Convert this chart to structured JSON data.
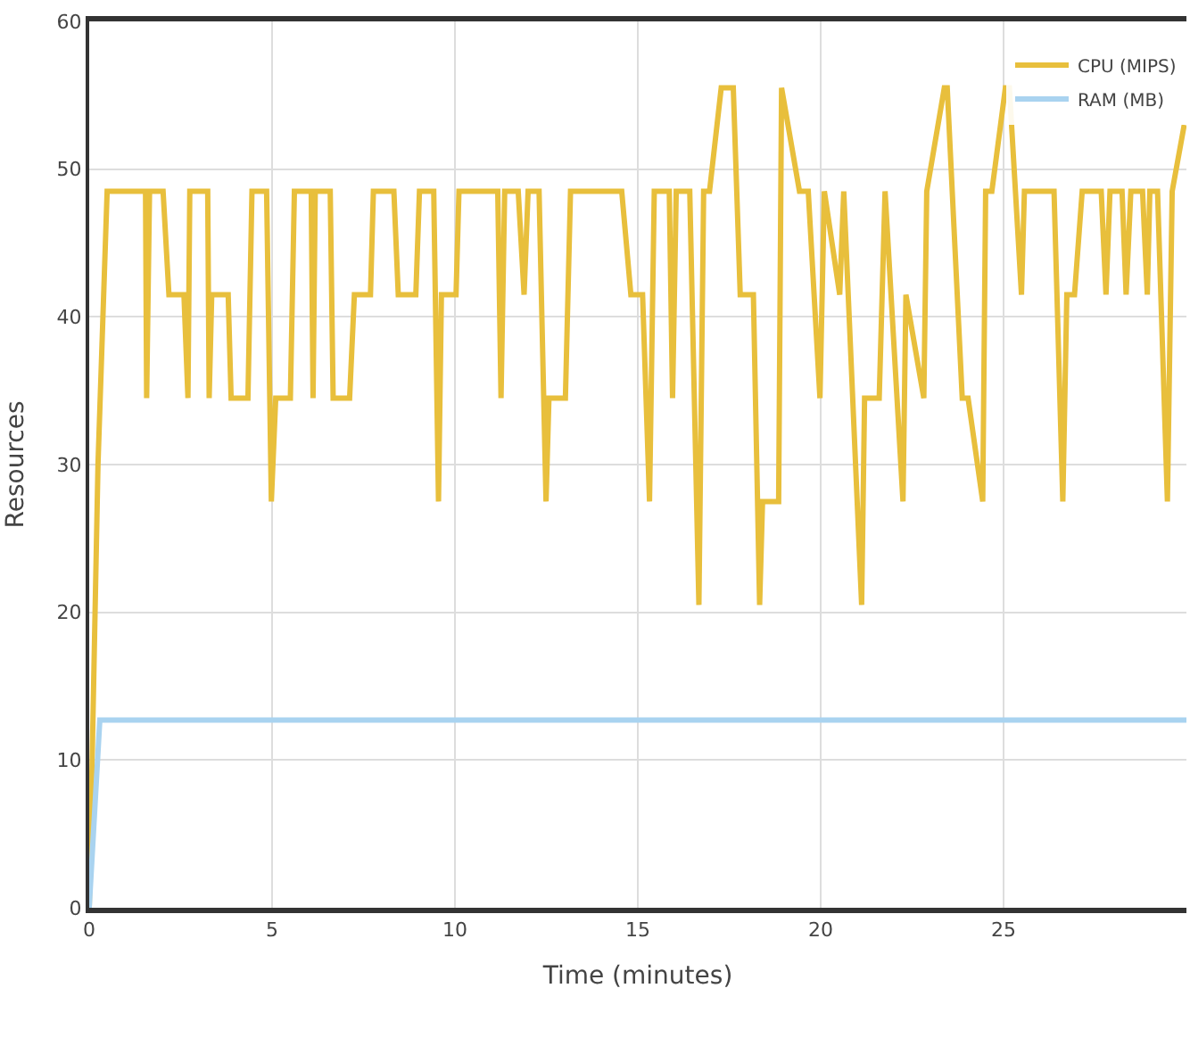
{
  "chart_data": {
    "type": "line",
    "xlabel": "Time (minutes)",
    "ylabel": "Resources",
    "xlim": [
      0,
      30
    ],
    "xticks": [
      0,
      5,
      10,
      15,
      20,
      25
    ],
    "ylim": [
      0,
      60
    ],
    "yticks": [
      0,
      10,
      20,
      30,
      40,
      50,
      60
    ],
    "grid": true,
    "legend": "top right",
    "marker": "none",
    "line_style": "solid",
    "series": [
      {
        "name": "CPU (MIPS)",
        "color": "#e8bf3c",
        "x": [
          0,
          0.24,
          0.49,
          1.54,
          1.57,
          1.65,
          2.02,
          2.18,
          2.59,
          2.7,
          2.75,
          3.24,
          3.28,
          3.35,
          3.8,
          3.88,
          4.34,
          4.45,
          4.85,
          4.98,
          5.1,
          5.5,
          5.61,
          6.07,
          6.12,
          6.18,
          6.59,
          6.67,
          7.12,
          7.25,
          7.69,
          7.77,
          8.33,
          8.45,
          8.93,
          9.03,
          9.42,
          9.55,
          9.63,
          10.03,
          10.11,
          11.17,
          11.26,
          11.36,
          11.73,
          11.89,
          12.0,
          12.3,
          12.49,
          12.57,
          13.02,
          13.16,
          14.56,
          14.81,
          15.13,
          15.32,
          15.45,
          15.86,
          15.95,
          16.05,
          16.42,
          16.67,
          16.8,
          16.96,
          17.28,
          17.61,
          17.8,
          18.16,
          18.33,
          18.41,
          18.85,
          18.93,
          19.42,
          19.66,
          19.98,
          20.1,
          20.52,
          20.63,
          21.12,
          21.2,
          21.6,
          21.76,
          22.25,
          22.33,
          22.82,
          22.9,
          23.38,
          23.46,
          23.87,
          24.03,
          24.43,
          24.51,
          24.68,
          25.05,
          25.16,
          25.49,
          25.57,
          26.38,
          26.62,
          26.73,
          26.94,
          27.15,
          27.67,
          27.8,
          27.91,
          28.24,
          28.35,
          28.48,
          28.8,
          28.93,
          29.0,
          29.21,
          29.48,
          29.61,
          29.94
        ],
        "values": [
          0,
          30,
          48.5,
          48.5,
          34.5,
          48.5,
          48.5,
          41.5,
          41.5,
          34.5,
          48.5,
          48.5,
          34.5,
          41.5,
          41.5,
          34.5,
          34.5,
          48.5,
          48.5,
          27.5,
          34.5,
          34.5,
          48.5,
          48.5,
          34.5,
          48.5,
          48.5,
          34.5,
          34.5,
          41.5,
          41.5,
          48.5,
          48.5,
          41.5,
          41.5,
          48.5,
          48.5,
          27.5,
          41.5,
          41.5,
          48.5,
          48.5,
          34.5,
          48.5,
          48.5,
          41.5,
          48.5,
          48.5,
          27.5,
          34.5,
          34.5,
          48.5,
          48.5,
          41.5,
          41.5,
          27.5,
          48.5,
          48.5,
          34.5,
          48.5,
          48.5,
          20.5,
          48.5,
          48.5,
          55.5,
          55.5,
          41.5,
          41.5,
          20.5,
          27.5,
          27.5,
          55.5,
          48.5,
          48.5,
          34.5,
          48.5,
          41.5,
          48.5,
          20.5,
          34.5,
          34.5,
          48.5,
          27.5,
          41.5,
          34.5,
          48.5,
          55.5,
          55.5,
          34.5,
          34.5,
          27.5,
          48.5,
          48.5,
          55.5,
          55.5,
          41.5,
          48.5,
          48.5,
          27.5,
          41.5,
          41.5,
          48.5,
          48.5,
          41.5,
          48.5,
          48.5,
          41.5,
          48.5,
          48.5,
          41.5,
          48.5,
          48.5,
          27.5,
          48.5,
          53
        ]
      },
      {
        "name": "RAM (MB)",
        "color": "#a9d3f0",
        "x": [
          0,
          0.29,
          30
        ],
        "values": [
          0,
          12.7,
          12.7
        ]
      }
    ]
  }
}
